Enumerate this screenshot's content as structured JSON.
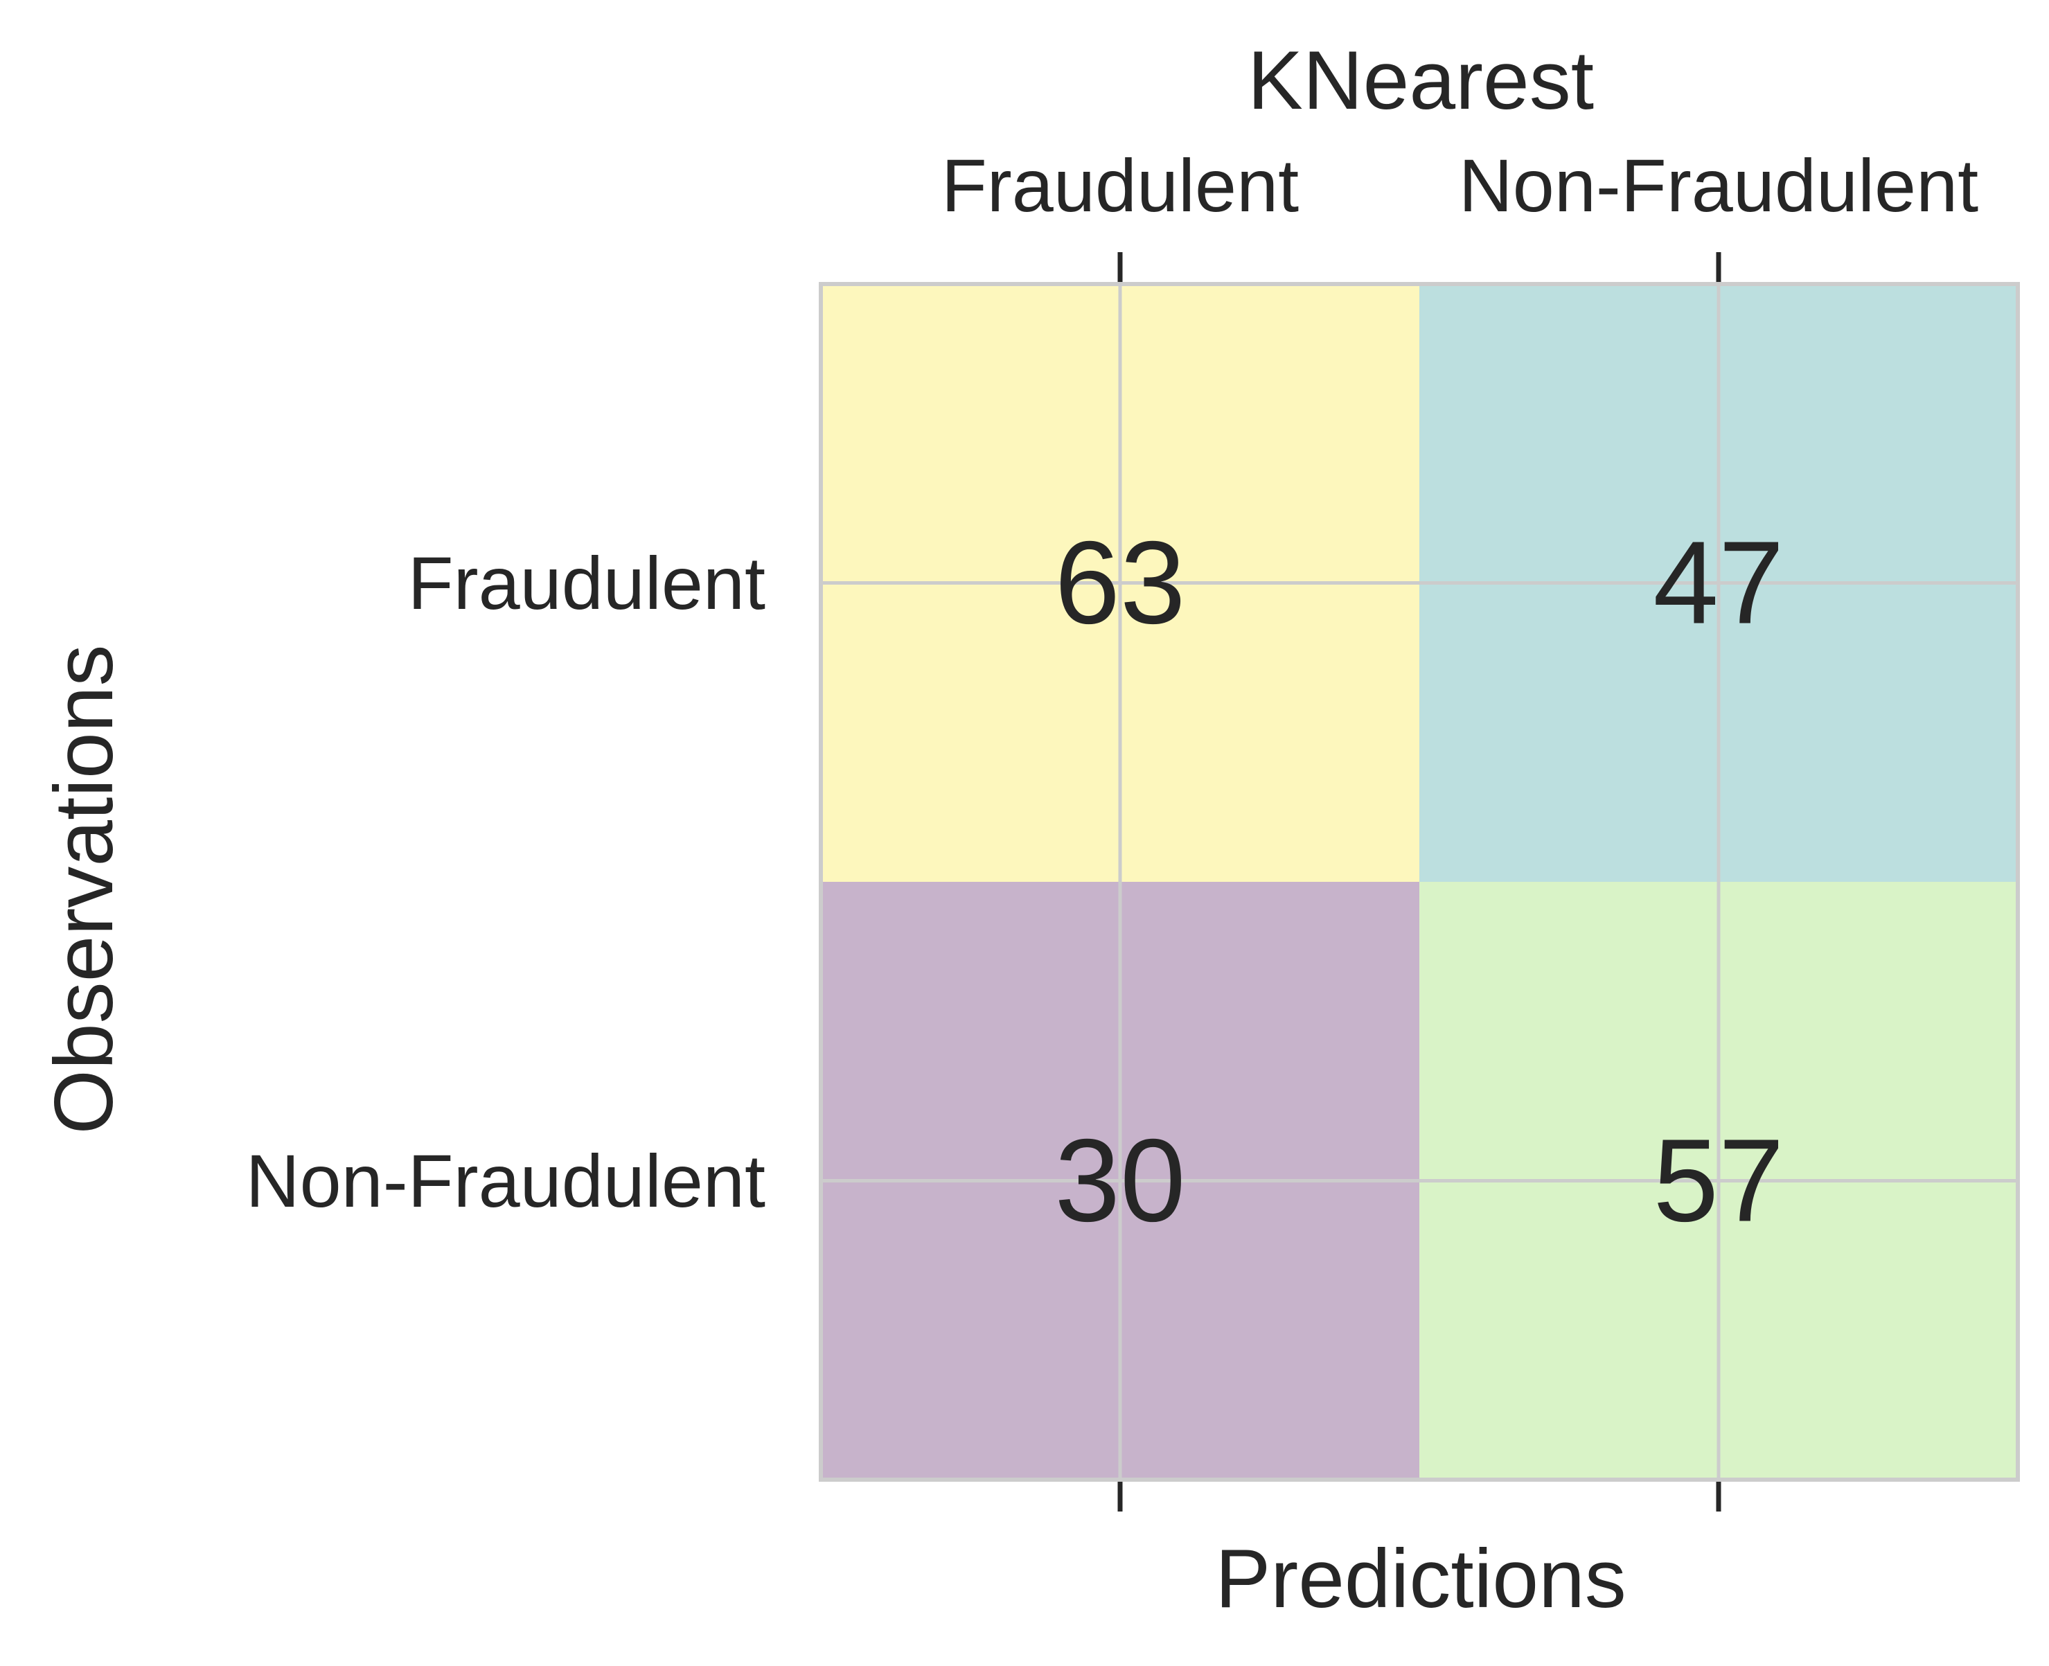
{
  "chart_data": {
    "type": "heatmap",
    "title": "KNearest",
    "xlabel": "Predictions",
    "ylabel": "Observations",
    "x_categories": [
      "Fraudulent",
      "Non-Fraudulent"
    ],
    "y_categories": [
      "Fraudulent",
      "Non-Fraudulent"
    ],
    "values": [
      [
        63,
        47
      ],
      [
        30,
        57
      ]
    ],
    "cell_colors": [
      [
        "#fdf7bd",
        "#bcdfdf"
      ],
      [
        "#c7b3cb",
        "#d9f3c7"
      ]
    ],
    "x_tick_position": "top",
    "grid": true,
    "grid_color": "#cccccc",
    "text_color": "#262626"
  }
}
